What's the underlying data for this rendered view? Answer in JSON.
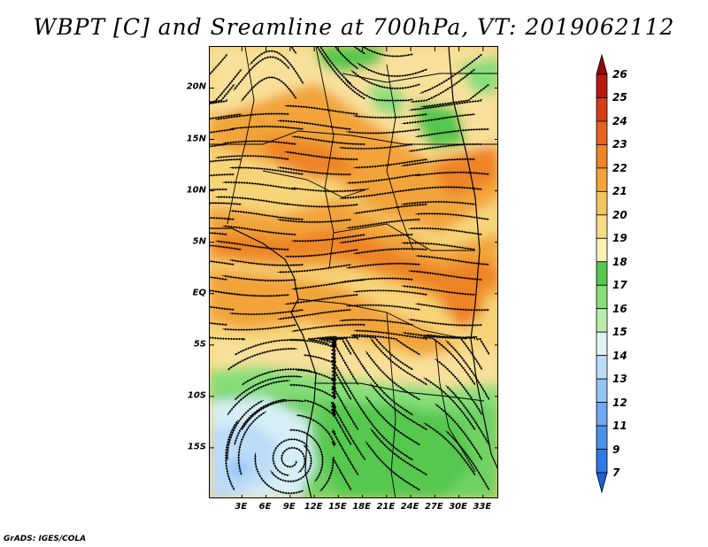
{
  "title": "WBPT [C] and Sreamline at 700hPa, VT: 2019062112",
  "credit": "GrADS: IGES/COLA",
  "map": {
    "lon_range": [
      -1,
      35
    ],
    "lat_range": [
      -20,
      24
    ],
    "lat_ticks": [
      {
        "value": 20,
        "label": "20N"
      },
      {
        "value": 15,
        "label": "15N"
      },
      {
        "value": 10,
        "label": "10N"
      },
      {
        "value": 5,
        "label": "5N"
      },
      {
        "value": 0,
        "label": "EQ"
      },
      {
        "value": -5,
        "label": "5S"
      },
      {
        "value": -10,
        "label": "10S"
      },
      {
        "value": -15,
        "label": "15S"
      }
    ],
    "lon_ticks": [
      {
        "value": 3,
        "label": "3E"
      },
      {
        "value": 6,
        "label": "6E"
      },
      {
        "value": 9,
        "label": "9E"
      },
      {
        "value": 12,
        "label": "12E"
      },
      {
        "value": 15,
        "label": "15E"
      },
      {
        "value": 18,
        "label": "18E"
      },
      {
        "value": 21,
        "label": "21E"
      },
      {
        "value": 24,
        "label": "24E"
      },
      {
        "value": 27,
        "label": "27E"
      },
      {
        "value": 30,
        "label": "30E"
      },
      {
        "value": 33,
        "label": "33E"
      }
    ]
  },
  "colorbar": {
    "levels": [
      "7",
      "9",
      "11",
      "12",
      "13",
      "14",
      "15",
      "16",
      "17",
      "18",
      "19",
      "20",
      "21",
      "22",
      "23",
      "24",
      "25",
      "26"
    ],
    "colors": [
      "#1f5fd8",
      "#2f7be4",
      "#4a93ec",
      "#6eaaf1",
      "#94c4f5",
      "#bcdcf8",
      "#e2f2f8",
      "#b9eeae",
      "#86de7a",
      "#55c84d",
      "#fbf2b4",
      "#f8dd86",
      "#f6c45c",
      "#f2a43a",
      "#ee8428",
      "#e8621c",
      "#d63e16",
      "#b81a10",
      "#8c0a08"
    ]
  }
}
